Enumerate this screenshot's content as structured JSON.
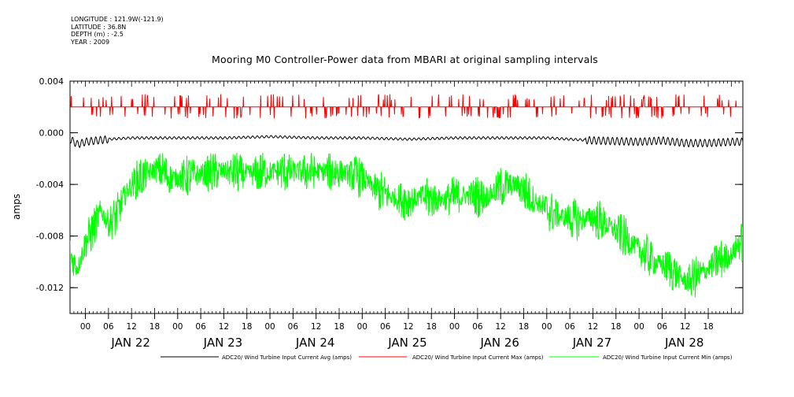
{
  "meta": {
    "longitude": "LONGITUDE : 121.9W(-121.9)",
    "latitude": "LATITUDE : 36.8N",
    "depth": "DEPTH (m) : -2.5",
    "year": "YEAR : 2009"
  },
  "chart_data": {
    "type": "line",
    "title": "Mooring M0 Controller-Power data from MBARI at original sampling intervals",
    "ylabel": "amps",
    "xlabel": "",
    "ylim": [
      -0.014,
      0.004
    ],
    "yticks": [
      0.004,
      0.0,
      -0.004,
      -0.008,
      -0.012
    ],
    "ytick_labels": [
      "0.004",
      "0.000",
      "-0.004",
      "-0.008",
      "-0.012"
    ],
    "xlim_hours": [
      -4,
      171
    ],
    "x_origin": "JAN 22 00:00",
    "hour_tick_labels": [
      "00",
      "06",
      "12",
      "18",
      "00",
      "06",
      "12",
      "18",
      "00",
      "06",
      "12",
      "18",
      "00",
      "06",
      "12",
      "18",
      "00",
      "06",
      "12",
      "18",
      "00",
      "06",
      "12",
      "18",
      "00",
      "06",
      "12",
      "18"
    ],
    "day_labels": [
      "JAN 22",
      "JAN 23",
      "JAN 24",
      "JAN 25",
      "JAN 26",
      "JAN 27",
      "JAN 28"
    ],
    "grid": false,
    "legend_position": "bottom",
    "series": [
      {
        "name": "ADC20/ Wind Turbine Input Current Avg (amps)",
        "color": "#000000",
        "x": [
          -4,
          -2,
          0,
          6,
          12,
          24,
          36,
          48,
          60,
          72,
          84,
          96,
          108,
          120,
          132,
          144,
          150,
          156,
          162,
          168,
          170
        ],
        "y": [
          -0.0005,
          -0.0009,
          -0.0007,
          -0.0005,
          -0.0004,
          -0.0004,
          -0.0004,
          -0.0003,
          -0.0004,
          -0.0004,
          -0.0005,
          -0.0004,
          -0.0004,
          -0.0004,
          -0.0006,
          -0.0007,
          -0.0006,
          -0.0008,
          -0.0008,
          -0.0007,
          -0.0007
        ]
      },
      {
        "name": "ADC20/ Wind Turbine Input Current Max (amps)",
        "color": "#ff0000",
        "x": [
          -4,
          0,
          24,
          48,
          72,
          96,
          120,
          144,
          170
        ],
        "y": [
          0.002,
          0.002,
          0.002,
          0.002,
          0.002,
          0.002,
          0.002,
          0.002,
          0.002
        ]
      },
      {
        "name": "ADC20/ Wind Turbine Input Current Min (amps)",
        "color": "#00ff00",
        "x": [
          -4,
          -2,
          0,
          2,
          4,
          6,
          8,
          10,
          12,
          14,
          16,
          18,
          20,
          22,
          24,
          30,
          36,
          42,
          48,
          54,
          60,
          66,
          72,
          76,
          80,
          84,
          88,
          92,
          96,
          100,
          104,
          108,
          112,
          116,
          120,
          124,
          128,
          132,
          136,
          140,
          144,
          148,
          152,
          156,
          160,
          164,
          168,
          170
        ],
        "y": [
          -0.0095,
          -0.0105,
          -0.0085,
          -0.0075,
          -0.006,
          -0.007,
          -0.0065,
          -0.005,
          -0.004,
          -0.0035,
          -0.0032,
          -0.0028,
          -0.003,
          -0.0035,
          -0.0035,
          -0.0032,
          -0.003,
          -0.0032,
          -0.003,
          -0.003,
          -0.003,
          -0.003,
          -0.0035,
          -0.0045,
          -0.005,
          -0.0052,
          -0.005,
          -0.0052,
          -0.005,
          -0.0048,
          -0.005,
          -0.0042,
          -0.004,
          -0.005,
          -0.006,
          -0.0065,
          -0.0068,
          -0.0065,
          -0.0072,
          -0.008,
          -0.009,
          -0.01,
          -0.0105,
          -0.0115,
          -0.011,
          -0.01,
          -0.0095,
          -0.0085
        ]
      }
    ]
  },
  "legend": [
    {
      "label": "ADC20/ Wind Turbine Input Current Avg (amps)",
      "color": "#000000"
    },
    {
      "label": "ADC20/ Wind Turbine Input Current Max (amps)",
      "color": "#ff0000"
    },
    {
      "label": "ADC20/ Wind Turbine Input Current Min (amps)",
      "color": "#00ff00"
    }
  ]
}
